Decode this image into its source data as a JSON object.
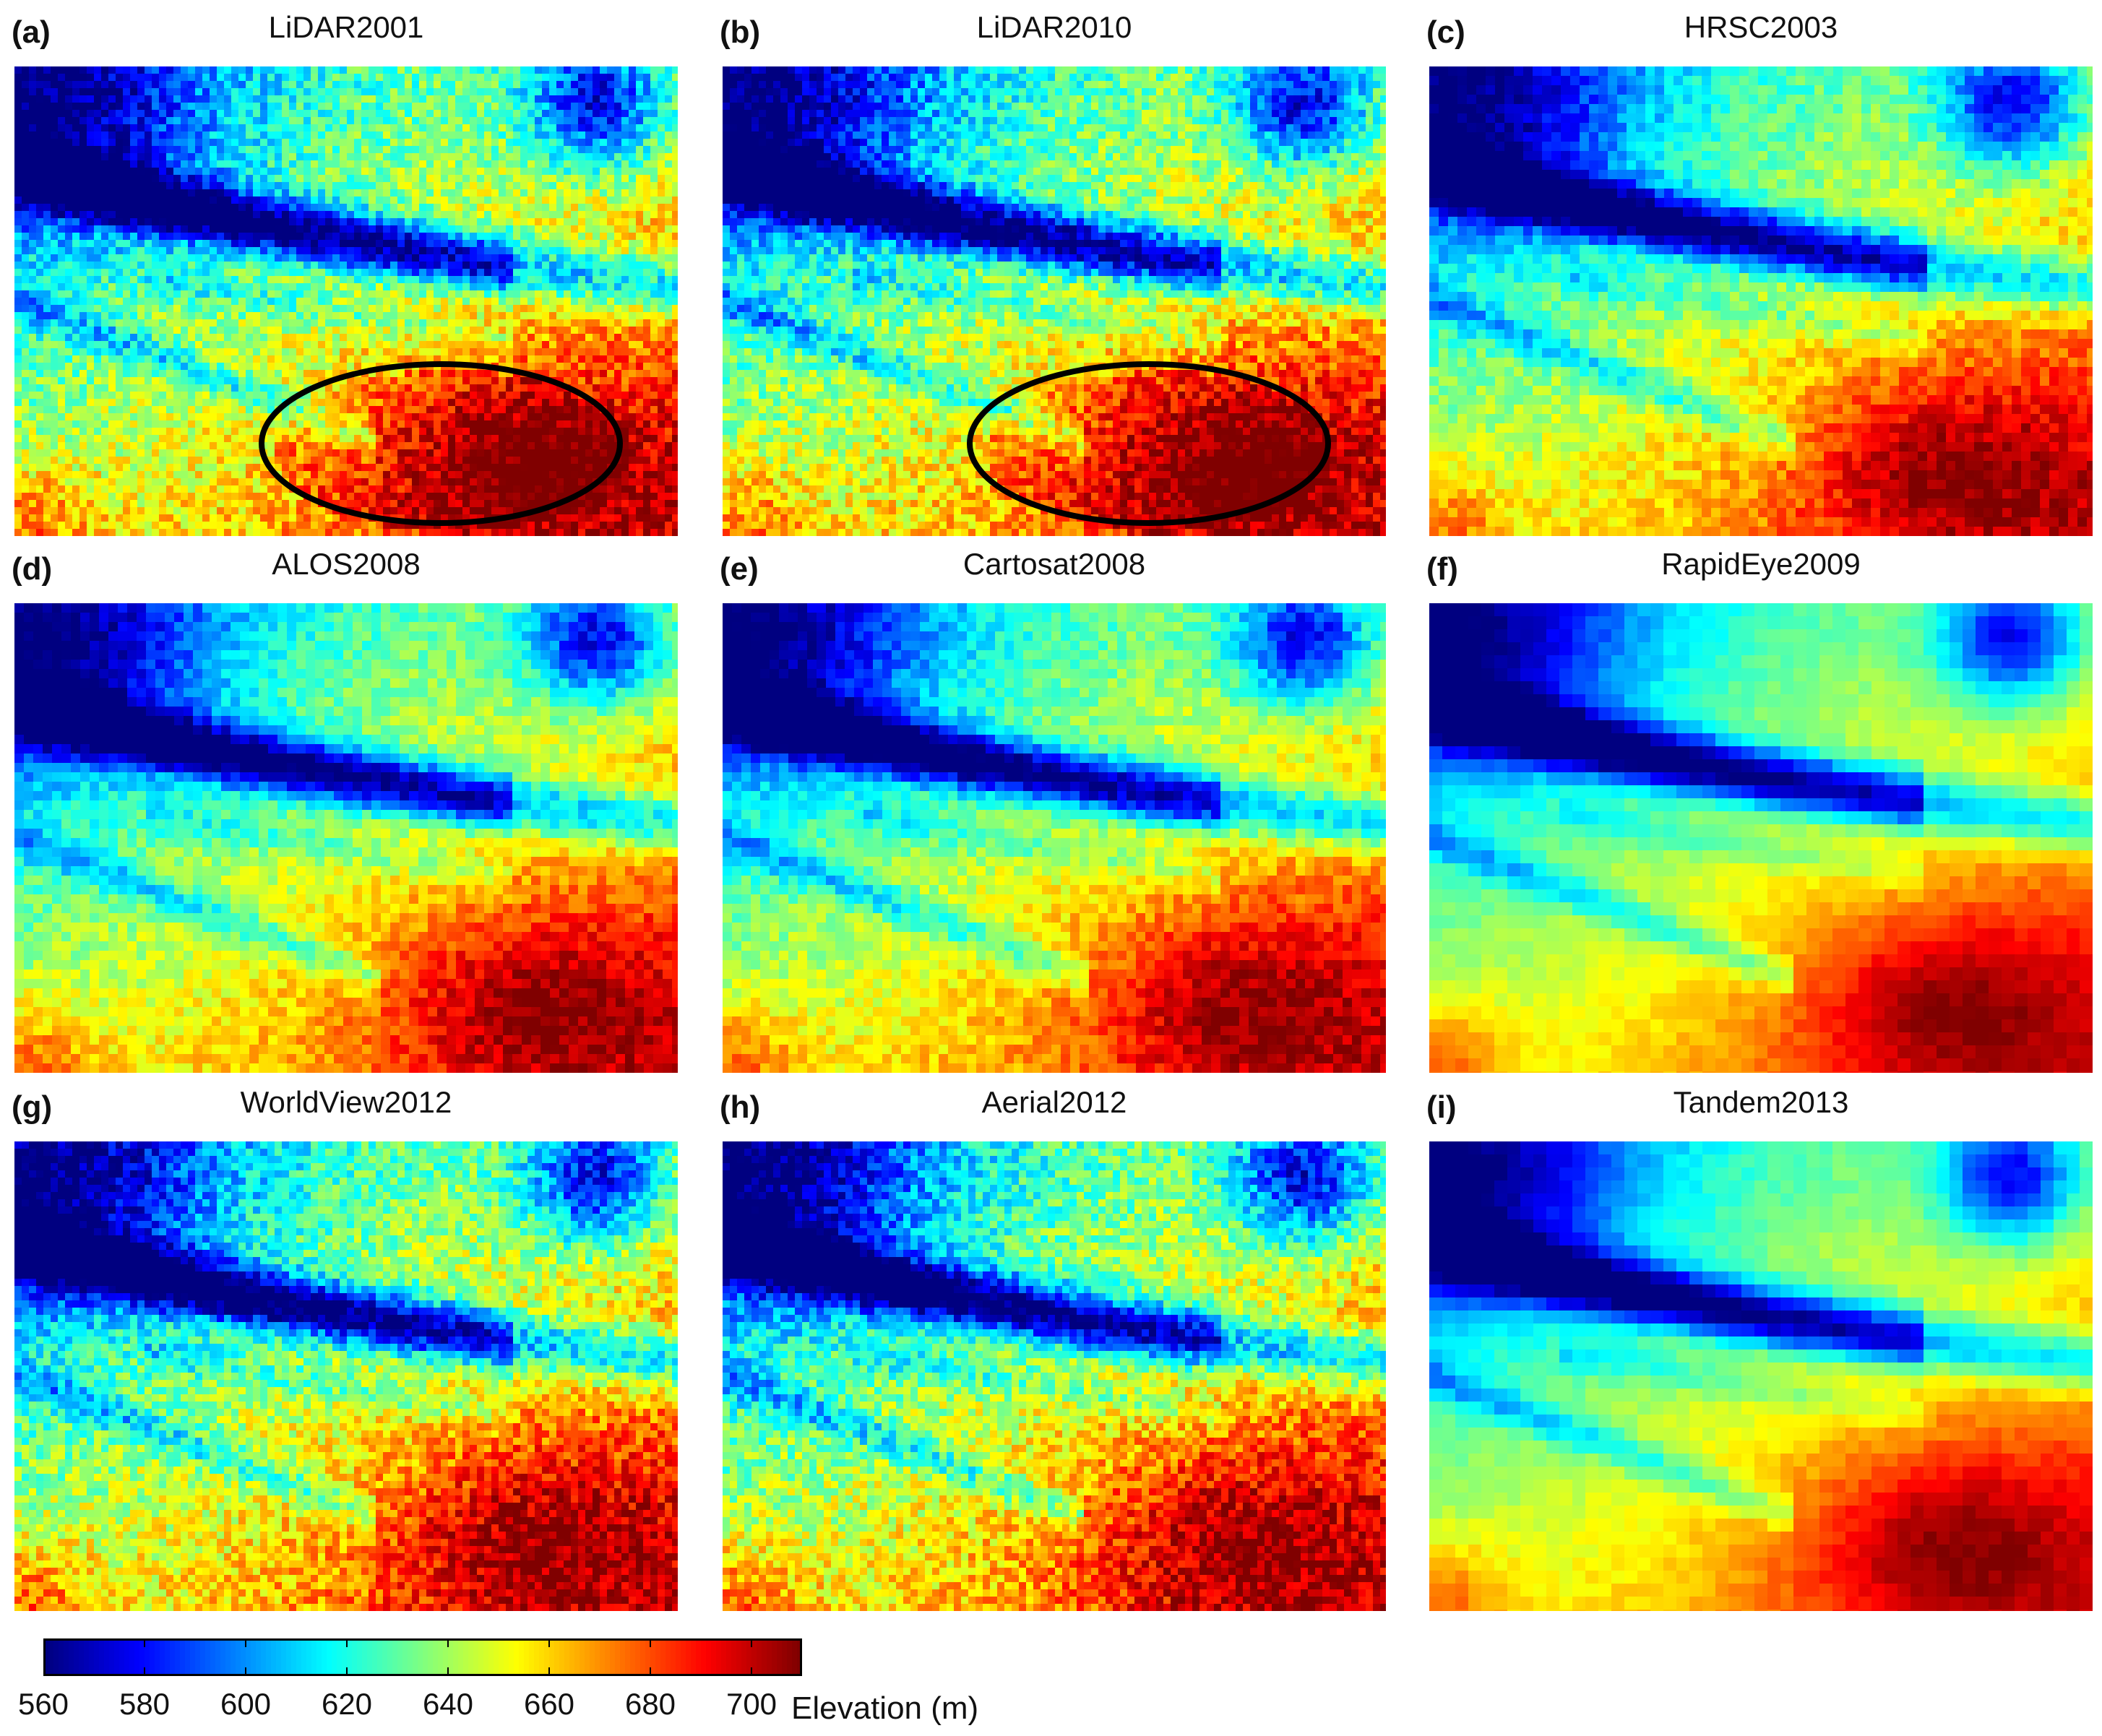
{
  "panels": [
    {
      "label": "(a)",
      "title": "LiDAR2001",
      "highlight": true,
      "texture": "fine"
    },
    {
      "label": "(b)",
      "title": "LiDAR2010",
      "highlight": true,
      "texture": "fine"
    },
    {
      "label": "(c)",
      "title": "HRSC2003",
      "highlight": false,
      "texture": "medium"
    },
    {
      "label": "(d)",
      "title": "ALOS2008",
      "highlight": false,
      "texture": "medium"
    },
    {
      "label": "(e)",
      "title": "Cartosat2008",
      "highlight": false,
      "texture": "medium"
    },
    {
      "label": "(f)",
      "title": "RapidEye2009",
      "highlight": false,
      "texture": "smooth"
    },
    {
      "label": "(g)",
      "title": "WorldView2012",
      "highlight": false,
      "texture": "fine"
    },
    {
      "label": "(h)",
      "title": "Aerial2012",
      "highlight": false,
      "texture": "fine"
    },
    {
      "label": "(i)",
      "title": "Tandem2013",
      "highlight": false,
      "texture": "smooth"
    }
  ],
  "colorbar": {
    "label": "Elevation (m)",
    "min": 560,
    "max": 710,
    "ticks": [
      "560",
      "580",
      "600",
      "620",
      "640",
      "660",
      "680",
      "700"
    ],
    "colormap": "jet"
  }
}
